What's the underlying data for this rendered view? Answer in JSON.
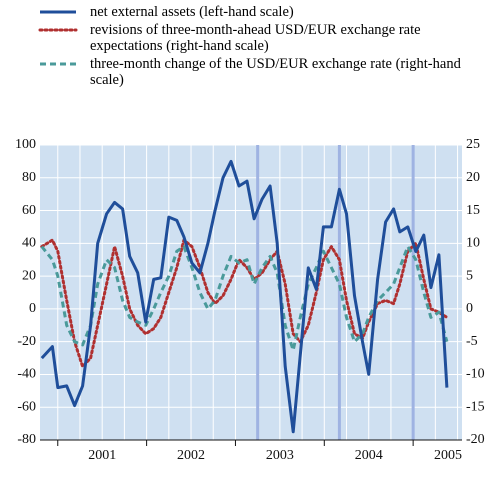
{
  "chart_data": {
    "type": "line",
    "x": [
      2000.82,
      2000.94,
      2001.0,
      2001.1,
      2001.19,
      2001.28,
      2001.37,
      2001.45,
      2001.55,
      2001.64,
      2001.73,
      2001.81,
      2001.9,
      2001.99,
      2002.08,
      2002.16,
      2002.25,
      2002.34,
      2002.42,
      2002.51,
      2002.6,
      2002.69,
      2002.77,
      2002.86,
      2002.95,
      2003.04,
      2003.13,
      2003.21,
      2003.3,
      2003.39,
      2003.47,
      2003.56,
      2003.65,
      2003.73,
      2003.82,
      2003.91,
      2003.99,
      2004.08,
      2004.17,
      2004.25,
      2004.34,
      2004.43,
      2004.5,
      2004.6,
      2004.69,
      2004.78,
      2004.85,
      2004.94,
      2005.03,
      2005.12,
      2005.2,
      2005.29,
      2005.38
    ],
    "series": [
      {
        "name": "net external assets (left-hand scale)",
        "color": "#1f4e9a",
        "style": "solid",
        "values": [
          -30,
          -23,
          -48,
          -47,
          -59,
          -47,
          -10,
          40,
          58,
          65,
          61,
          32,
          22,
          -8,
          18,
          19,
          56,
          54,
          44,
          28,
          22,
          40,
          60,
          80,
          90,
          75,
          78,
          55,
          67,
          75,
          40,
          -35,
          -75,
          -28,
          25,
          12,
          50,
          50,
          73,
          58,
          8,
          -20,
          -40,
          18,
          53,
          61,
          47,
          50,
          35,
          45,
          13,
          33,
          -48
        ]
      },
      {
        "name": "revisions of three-month-ahead USD/EUR exchange rate expectations (right-hand scale)",
        "color": "#b03030",
        "style": "dotted",
        "axis": "y2",
        "values": [
          9.5,
          10.5,
          8.8,
          1.3,
          -5,
          -8.8,
          -7.5,
          -2.5,
          3.8,
          9.5,
          5,
          0,
          -2.5,
          -3.8,
          -3,
          -1.3,
          2.5,
          6.3,
          10.5,
          9.5,
          6.3,
          2.5,
          0.8,
          2,
          4.5,
          7.5,
          6.3,
          4.5,
          5.5,
          7.5,
          8.8,
          3.8,
          -3.8,
          -5,
          -2.5,
          2.5,
          7.5,
          9.5,
          7.5,
          1.3,
          -3.8,
          -4.5,
          -2,
          0.8,
          1.3,
          0.8,
          3.8,
          8.8,
          10,
          4.5,
          0,
          -0.5,
          -1.3
        ]
      },
      {
        "name": "three-month change of the USD/EUR exchange rate (right-hand scale)",
        "color": "#4a9a9a",
        "style": "dashed",
        "axis": "y2",
        "values": [
          9.5,
          7.5,
          5,
          -2.5,
          -5,
          -5.5,
          -2.5,
          3.8,
          7.5,
          6.3,
          1.3,
          -1.3,
          -2,
          -2.5,
          0,
          2.5,
          5,
          8.8,
          9.5,
          6.3,
          2.5,
          0,
          1.3,
          5,
          8,
          7,
          7.5,
          3.8,
          6.3,
          8,
          5.5,
          -2.5,
          -6.3,
          -1.3,
          3.8,
          6.3,
          8.8,
          6.3,
          3.8,
          -1.3,
          -5,
          -3.8,
          -1.3,
          1.3,
          2.5,
          3.8,
          6.3,
          9.5,
          7.5,
          2.5,
          -1.3,
          -0.5,
          -5
        ]
      }
    ],
    "xlim": [
      2000.8,
      2005.55
    ],
    "xticks": [
      2001,
      2002,
      2003,
      2004,
      2005
    ],
    "ylim": [
      -80,
      100
    ],
    "yticks": [
      -80,
      -60,
      -40,
      -20,
      0,
      20,
      40,
      60,
      80,
      100
    ],
    "y2lim": [
      -20,
      25
    ],
    "y2ticks": [
      -20,
      -15,
      -10,
      -5,
      0,
      5,
      10,
      15,
      20,
      25
    ],
    "highlight_x": [
      2003.25,
      2004.17,
      2005.0
    ],
    "grid": true
  }
}
